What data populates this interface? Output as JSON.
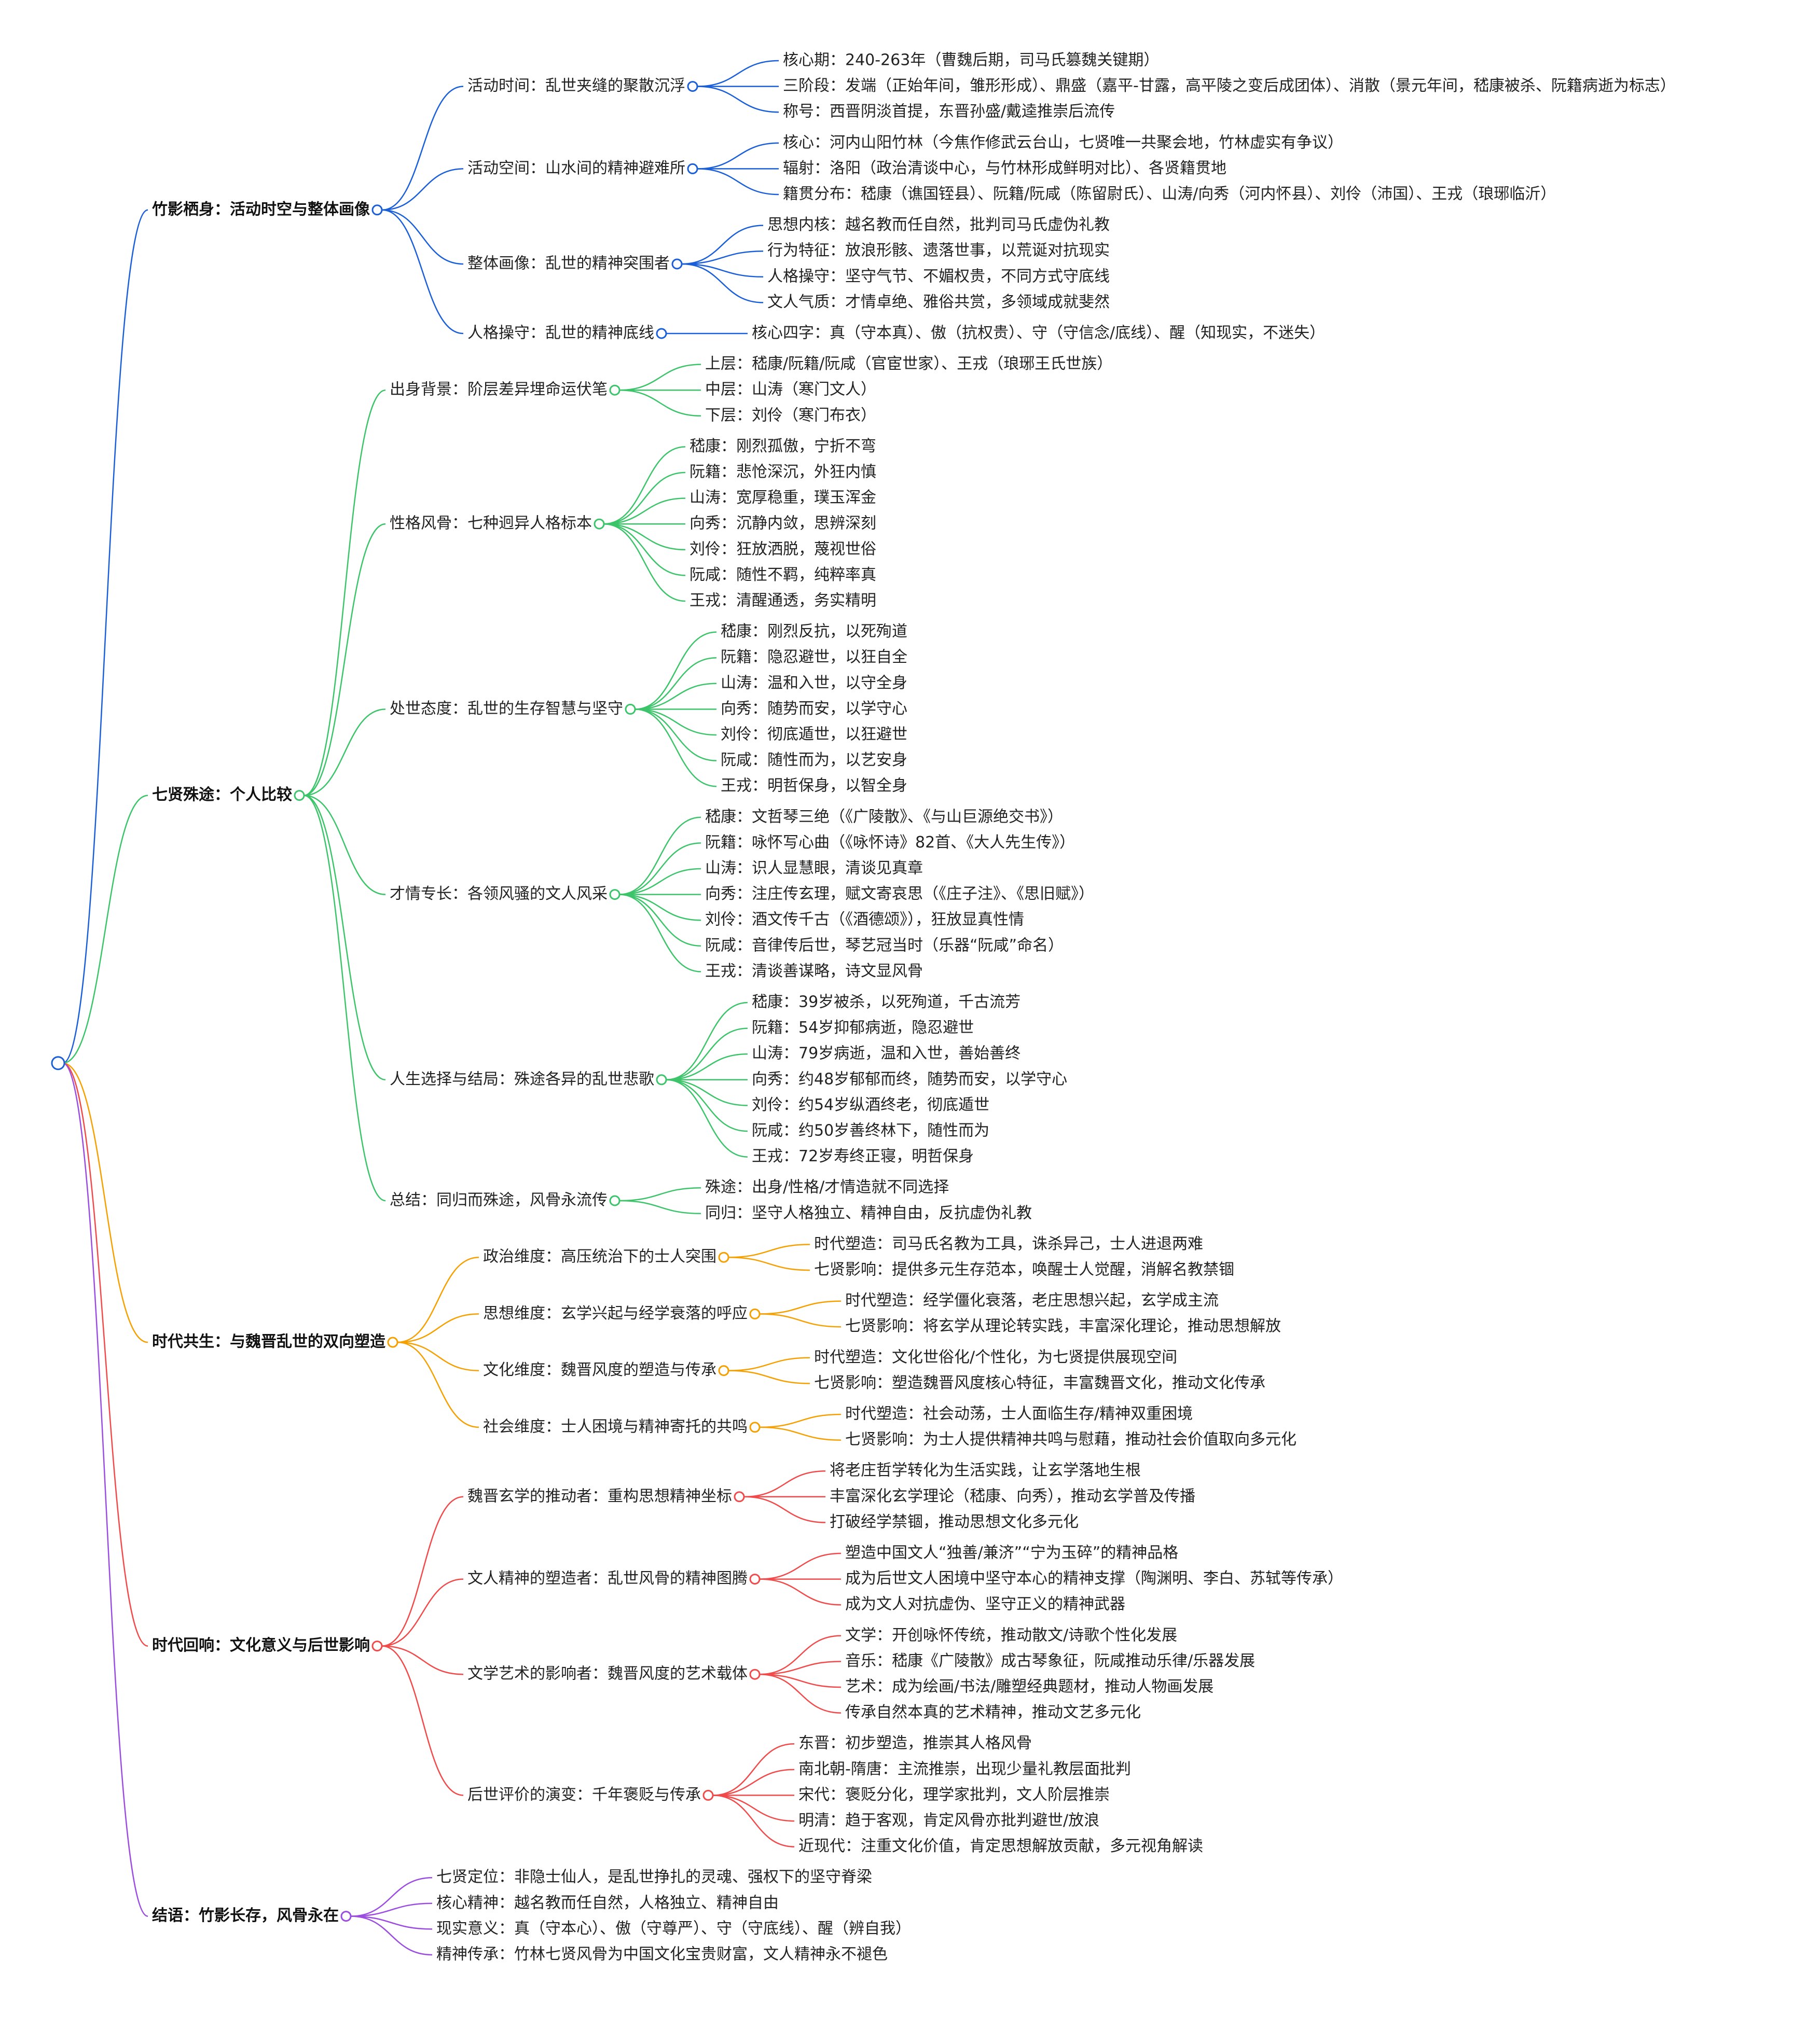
{
  "branches": [
    {
      "label": "竹影栖身：活动时空与整体画像",
      "color": "#1a5fd8",
      "children": [
        {
          "label": "活动时间：乱世夹缝的聚散沉浮",
          "children": [
            "核心期：240-263年（曹魏后期，司马氏篡魏关键期）",
            "三阶段：发端（正始年间，雏形形成）、鼎盛（嘉平-甘露，高平陵之变后成团体）、消散（景元年间，嵇康被杀、阮籍病逝为标志）",
            "称号：西晋阴淡首提，东晋孙盛/戴逵推崇后流传"
          ]
        },
        {
          "label": "活动空间：山水间的精神避难所",
          "children": [
            "核心：河内山阳竹林（今焦作修武云台山，七贤唯一共聚会地，竹林虚实有争议）",
            "辐射：洛阳（政治清谈中心，与竹林形成鲜明对比）、各贤籍贯地",
            "籍贯分布：嵇康（谯国铚县）、阮籍/阮咸（陈留尉氏）、山涛/向秀（河内怀县）、刘伶（沛国）、王戎（琅琊临沂）"
          ]
        },
        {
          "label": "整体画像：乱世的精神突围者",
          "children": [
            "思想内核：越名教而任自然，批判司马氏虚伪礼教",
            "行为特征：放浪形骸、遗落世事，以荒诞对抗现实",
            "人格操守：坚守气节、不媚权贵，不同方式守底线",
            "文人气质：才情卓绝、雅俗共赏，多领域成就斐然"
          ]
        },
        {
          "label": "人格操守：乱世的精神底线",
          "children": [
            "核心四字：真（守本真）、傲（抗权贵）、守（守信念/底线）、醒（知现实，不迷失）"
          ]
        }
      ]
    },
    {
      "label": "七贤殊途：个人比较",
      "color": "#3cc46a",
      "children": [
        {
          "label": "出身背景：阶层差异埋命运伏笔",
          "children": [
            "上层：嵇康/阮籍/阮咸（官宦世家）、王戎（琅琊王氏世族）",
            "中层：山涛（寒门文人）",
            "下层：刘伶（寒门布衣）"
          ]
        },
        {
          "label": "性格风骨：七种迥异人格标本",
          "children": [
            "嵇康：刚烈孤傲，宁折不弯",
            "阮籍：悲怆深沉，外狂内慎",
            "山涛：宽厚稳重，璞玉浑金",
            "向秀：沉静内敛，思辨深刻",
            "刘伶：狂放洒脱，蔑视世俗",
            "阮咸：随性不羁，纯粹率真",
            "王戎：清醒通透，务实精明"
          ]
        },
        {
          "label": "处世态度：乱世的生存智慧与坚守",
          "children": [
            "嵇康：刚烈反抗，以死殉道",
            "阮籍：隐忍避世，以狂自全",
            "山涛：温和入世，以守全身",
            "向秀：随势而安，以学守心",
            "刘伶：彻底遁世，以狂避世",
            "阮咸：随性而为，以艺安身",
            "王戎：明哲保身，以智全身"
          ]
        },
        {
          "label": "才情专长：各领风骚的文人风采",
          "children": [
            "嵇康：文哲琴三绝（《广陵散》、《与山巨源绝交书》）",
            "阮籍：咏怀写心曲（《咏怀诗》82首、《大人先生传》）",
            "山涛：识人显慧眼，清谈见真章",
            "向秀：注庄传玄理，赋文寄哀思（《庄子注》、《思旧赋》）",
            "刘伶：酒文传千古（《酒德颂》），狂放显真性情",
            "阮咸：音律传后世，琴艺冠当时（乐器“阮咸”命名）",
            "王戎：清谈善谋略，诗文显风骨"
          ]
        },
        {
          "label": "人生选择与结局：殊途各异的乱世悲歌",
          "children": [
            "嵇康：39岁被杀，以死殉道，千古流芳",
            "阮籍：54岁抑郁病逝，隐忍避世",
            "山涛：79岁病逝，温和入世，善始善终",
            "向秀：约48岁郁郁而终，随势而安，以学守心",
            "刘伶：约54岁纵酒终老，彻底遁世",
            "阮咸：约50岁善终林下，随性而为",
            "王戎：72岁寿终正寝，明哲保身"
          ]
        },
        {
          "label": "总结：同归而殊途，风骨永流传",
          "children": [
            "殊途：出身/性格/才情造就不同选择",
            "同归：坚守人格独立、精神自由，反抗虚伪礼教"
          ]
        }
      ]
    },
    {
      "label": "时代共生：与魏晋乱世的双向塑造",
      "color": "#f5a000",
      "children": [
        {
          "label": "政治维度：高压统治下的士人突围",
          "children": [
            "时代塑造：司马氏名教为工具，诛杀异己，士人进退两难",
            "七贤影响：提供多元生存范本，唤醒士人觉醒，消解名教禁锢"
          ]
        },
        {
          "label": "思想维度：玄学兴起与经学衰落的呼应",
          "children": [
            "时代塑造：经学僵化衰落，老庄思想兴起，玄学成主流",
            "七贤影响：将玄学从理论转实践，丰富深化理论，推动思想解放"
          ]
        },
        {
          "label": "文化维度：魏晋风度的塑造与传承",
          "children": [
            "时代塑造：文化世俗化/个性化，为七贤提供展现空间",
            "七贤影响：塑造魏晋风度核心特征，丰富魏晋文化，推动文化传承"
          ]
        },
        {
          "label": "社会维度：士人困境与精神寄托的共鸣",
          "children": [
            "时代塑造：社会动荡，士人面临生存/精神双重困境",
            "七贤影响：为士人提供精神共鸣与慰藉，推动社会价值取向多元化"
          ]
        }
      ]
    },
    {
      "label": "时代回响：文化意义与后世影响",
      "color": "#f04a4a",
      "children": [
        {
          "label": "魏晋玄学的推动者：重构思想精神坐标",
          "children": [
            "将老庄哲学转化为生活实践，让玄学落地生根",
            "丰富深化玄学理论（嵇康、向秀），推动玄学普及传播",
            "打破经学禁锢，推动思想文化多元化"
          ]
        },
        {
          "label": "文人精神的塑造者：乱世风骨的精神图腾",
          "children": [
            "塑造中国文人“独善/兼济”“宁为玉碎”的精神品格",
            "成为后世文人困境中坚守本心的精神支撑（陶渊明、李白、苏轼等传承）",
            "成为文人对抗虚伪、坚守正义的精神武器"
          ]
        },
        {
          "label": "文学艺术的影响者：魏晋风度的艺术载体",
          "children": [
            "文学：开创咏怀传统，推动散文/诗歌个性化发展",
            "音乐：嵇康《广陵散》成古琴象征，阮咸推动乐律/乐器发展",
            "艺术：成为绘画/书法/雕塑经典题材，推动人物画发展",
            "传承自然本真的艺术精神，推动文艺多元化"
          ]
        },
        {
          "label": "后世评价的演变：千年褒贬与传承",
          "children": [
            "东晋：初步塑造，推崇其人格风骨",
            "南北朝-隋唐：主流推崇，出现少量礼教层面批判",
            "宋代：褒贬分化，理学家批判，文人阶层推崇",
            "明清：趋于客观，肯定风骨亦批判避世/放浪",
            "近现代：注重文化价值，肯定思想解放贡献，多元视角解读"
          ]
        }
      ]
    },
    {
      "label": "结语：竹影长存，风骨永在",
      "color": "#9b4de0",
      "children": [
        "七贤定位：非隐士仙人，是乱世挣扎的灵魂、强权下的坚守脊梁",
        "核心精神：越名教而任自然，人格独立、精神自由",
        "现实意义：真（守本心）、傲（守尊严）、守（守底线）、醒（辨自我）",
        "精神传承：竹林七贤风骨为中国文化宝贵财富，文人精神永不褪色"
      ]
    }
  ]
}
